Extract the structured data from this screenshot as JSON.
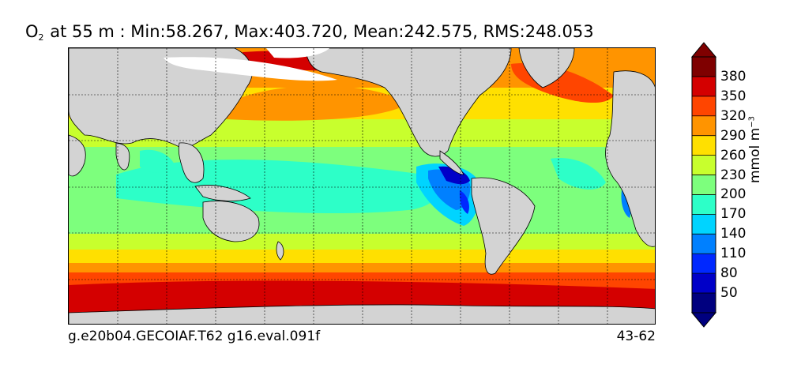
{
  "title": {
    "species": "O",
    "species_sub": "2",
    "text": " at 55 m : Min:58.267, Max:403.720, Mean:242.575, RMS:248.053"
  },
  "footer": {
    "left": "g.e20b04.GECOIAF.T62 g16.eval.091f",
    "right": "43-62"
  },
  "colorbar": {
    "units_main": "mmol m",
    "units_exp": "−3",
    "ticks": [
      "50",
      "80",
      "110",
      "140",
      "170",
      "200",
      "230",
      "260",
      "290",
      "320",
      "350",
      "380"
    ],
    "colors": [
      "#00007f",
      "#0000c8",
      "#0028ff",
      "#0080ff",
      "#00d4ff",
      "#2dffc8",
      "#7dff7d",
      "#c8ff2d",
      "#ffe000",
      "#ff9400",
      "#ff4500",
      "#d40000",
      "#7f0000"
    ]
  },
  "map": {
    "land_color": "#d3d3d3",
    "sea_ice_color": "#ffffff"
  }
}
